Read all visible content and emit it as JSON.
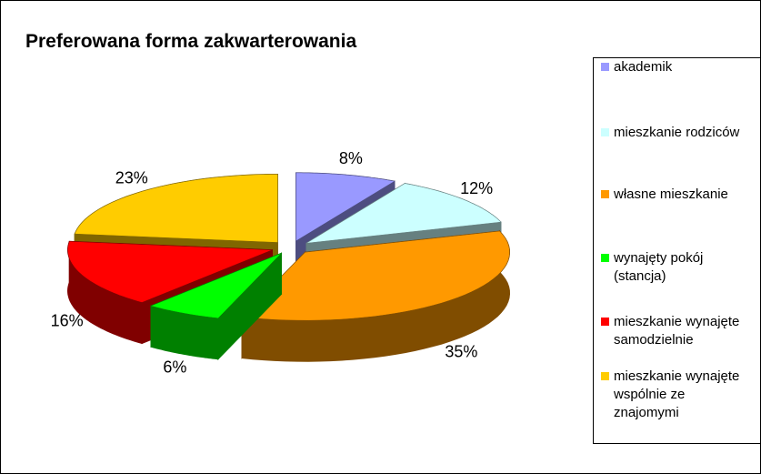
{
  "chart_data": {
    "type": "pie3d",
    "title": "Preferowana forma zakwarterowania",
    "categories": [
      "akademik",
      "mieszkanie rodziców",
      "własne mieszkanie",
      "wynajęty pokój (stancja)",
      "mieszkanie wynajęte samodzielnie",
      "mieszkanie wynajęte wspólnie ze znajomymi"
    ],
    "values": [
      8,
      12,
      35,
      6,
      16,
      23
    ],
    "value_labels": [
      "8%",
      "12%",
      "35%",
      "6%",
      "16%",
      "23%"
    ],
    "colors": [
      "#9999ff",
      "#ccffff",
      "#ff9900",
      "#00ff00",
      "#ff0000",
      "#ffcc00"
    ],
    "legend": "right"
  }
}
